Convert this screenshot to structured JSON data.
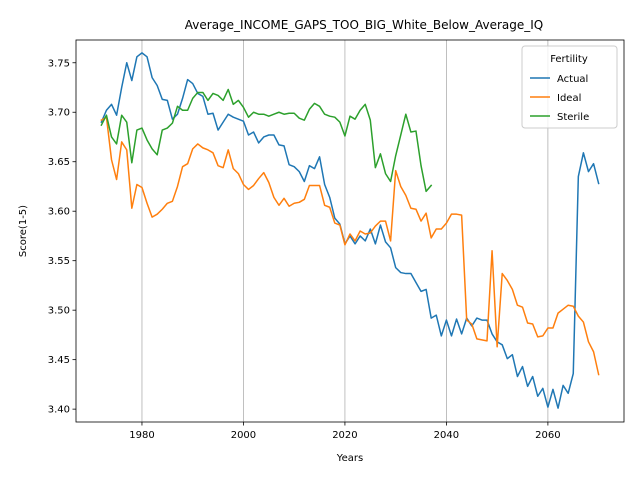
{
  "chart_data": {
    "type": "line",
    "title": "Average_INCOME_GAPS_TOO_BIG_White_Below_Average_IQ",
    "xlabel": "Years",
    "ylabel": "Score(1-5)",
    "xlim": [
      1967,
      2075
    ],
    "ylim": [
      3.387,
      3.773
    ],
    "xticks": [
      1980,
      2000,
      2020,
      2040,
      2060
    ],
    "yticks": [
      3.4,
      3.45,
      3.5,
      3.55,
      3.6,
      3.65,
      3.7,
      3.75
    ],
    "ytick_labels": [
      "3.40",
      "3.45",
      "3.50",
      "3.55",
      "3.60",
      "3.65",
      "3.70",
      "3.75"
    ],
    "grid": "x-only",
    "legend": {
      "title": "Fertility",
      "placement": "top-right"
    },
    "series": [
      {
        "name": "Actual",
        "color": "#1f77b4",
        "x": [
          1972,
          1973,
          1974,
          1975,
          1976,
          1977,
          1978,
          1979,
          1980,
          1981,
          1982,
          1983,
          1984,
          1985,
          1986,
          1987,
          1988,
          1989,
          1990,
          1991,
          1992,
          1993,
          1994,
          1995,
          1996,
          1997,
          1998,
          1999,
          2000,
          2001,
          2002,
          2003,
          2004,
          2005,
          2006,
          2007,
          2008,
          2009,
          2010,
          2011,
          2012,
          2013,
          2014,
          2015,
          2016,
          2017,
          2018,
          2019,
          2020,
          2021,
          2022,
          2023,
          2024,
          2025,
          2026,
          2027,
          2028,
          2029,
          2030,
          2031,
          2032,
          2033,
          2034,
          2035,
          2036,
          2037,
          2038,
          2039,
          2040,
          2041,
          2042,
          2043,
          2044,
          2045,
          2046,
          2047,
          2048,
          2049,
          2050,
          2051,
          2052,
          2053,
          2054,
          2055,
          2056,
          2057,
          2058,
          2059,
          2060,
          2061,
          2062,
          2063,
          2064,
          2065,
          2066,
          2067,
          2068,
          2069,
          2070
        ],
        "values": [
          3.69,
          3.702,
          3.708,
          3.697,
          3.725,
          3.75,
          3.732,
          3.756,
          3.76,
          3.756,
          3.735,
          3.727,
          3.713,
          3.712,
          3.693,
          3.698,
          3.714,
          3.733,
          3.729,
          3.719,
          3.716,
          3.698,
          3.699,
          3.682,
          3.69,
          3.698,
          3.695,
          3.693,
          3.691,
          3.677,
          3.68,
          3.669,
          3.675,
          3.677,
          3.677,
          3.667,
          3.666,
          3.647,
          3.645,
          3.64,
          3.63,
          3.646,
          3.643,
          3.655,
          3.627,
          3.614,
          3.593,
          3.587,
          3.567,
          3.575,
          3.567,
          3.575,
          3.57,
          3.582,
          3.567,
          3.586,
          3.569,
          3.563,
          3.543,
          3.538,
          3.537,
          3.537,
          3.528,
          3.519,
          3.521,
          3.492,
          3.495,
          3.474,
          3.49,
          3.474,
          3.491,
          3.476,
          3.492,
          3.484,
          3.492,
          3.49,
          3.49,
          3.476,
          3.468,
          3.465,
          3.451,
          3.455,
          3.433,
          3.443,
          3.423,
          3.433,
          3.413,
          3.421,
          3.402,
          3.42,
          3.401,
          3.424,
          3.416,
          3.436,
          3.635,
          3.659,
          3.64,
          3.648,
          3.628
        ]
      },
      {
        "name": "Ideal",
        "color": "#ff7f0e",
        "x": [
          1972,
          1973,
          1974,
          1975,
          1976,
          1977,
          1978,
          1979,
          1980,
          1981,
          1982,
          1983,
          1984,
          1985,
          1986,
          1987,
          1988,
          1989,
          1990,
          1991,
          1992,
          1993,
          1994,
          1995,
          1996,
          1997,
          1998,
          1999,
          2000,
          2001,
          2002,
          2003,
          2004,
          2005,
          2006,
          2007,
          2008,
          2009,
          2010,
          2011,
          2012,
          2013,
          2014,
          2015,
          2016,
          2017,
          2018,
          2019,
          2020,
          2021,
          2022,
          2023,
          2024,
          2025,
          2026,
          2027,
          2028,
          2029,
          2030,
          2031,
          2032,
          2033,
          2034,
          2035,
          2036,
          2037,
          2038,
          2039,
          2040,
          2041,
          2042,
          2043,
          2044,
          2045,
          2046,
          2047,
          2048,
          2049,
          2050,
          2051,
          2052,
          2053,
          2054,
          2055,
          2056,
          2057,
          2058,
          2059,
          2060,
          2061,
          2062,
          2063,
          2064,
          2065,
          2066,
          2067,
          2068,
          2069,
          2070
        ],
        "values": [
          3.692,
          3.695,
          3.652,
          3.632,
          3.67,
          3.662,
          3.603,
          3.627,
          3.624,
          3.608,
          3.594,
          3.597,
          3.602,
          3.608,
          3.61,
          3.625,
          3.645,
          3.648,
          3.663,
          3.668,
          3.664,
          3.662,
          3.659,
          3.646,
          3.644,
          3.662,
          3.643,
          3.638,
          3.627,
          3.622,
          3.626,
          3.633,
          3.639,
          3.629,
          3.614,
          3.606,
          3.613,
          3.605,
          3.608,
          3.609,
          3.612,
          3.626,
          3.626,
          3.626,
          3.606,
          3.604,
          3.588,
          3.586,
          3.566,
          3.577,
          3.57,
          3.58,
          3.577,
          3.578,
          3.585,
          3.59,
          3.59,
          3.57,
          3.641,
          3.625,
          3.616,
          3.603,
          3.602,
          3.59,
          3.598,
          3.573,
          3.582,
          3.582,
          3.588,
          3.597,
          3.597,
          3.596,
          3.49,
          3.486,
          3.471,
          3.47,
          3.469,
          3.56,
          3.463,
          3.537,
          3.53,
          3.521,
          3.505,
          3.503,
          3.487,
          3.486,
          3.473,
          3.474,
          3.482,
          3.482,
          3.497,
          3.501,
          3.505,
          3.504,
          3.494,
          3.488,
          3.468,
          3.458,
          3.435
        ]
      },
      {
        "name": "Sterile",
        "color": "#2ca02c",
        "x": [
          1972,
          1973,
          1974,
          1975,
          1976,
          1977,
          1978,
          1979,
          1980,
          1981,
          1982,
          1983,
          1984,
          1985,
          1986,
          1987,
          1988,
          1989,
          1990,
          1991,
          1992,
          1993,
          1994,
          1995,
          1996,
          1997,
          1998,
          1999,
          2000,
          2001,
          2002,
          2003,
          2004,
          2005,
          2006,
          2007,
          2008,
          2009,
          2010,
          2011,
          2012,
          2013,
          2014,
          2015,
          2016,
          2017,
          2018,
          2019,
          2020,
          2021,
          2022,
          2023,
          2024,
          2025,
          2026,
          2027,
          2028,
          2029,
          2030,
          2031,
          2032,
          2033,
          2034,
          2035,
          2036,
          2037
        ],
        "values": [
          3.687,
          3.697,
          3.675,
          3.668,
          3.697,
          3.69,
          3.649,
          3.682,
          3.684,
          3.672,
          3.663,
          3.657,
          3.682,
          3.684,
          3.689,
          3.706,
          3.702,
          3.702,
          3.714,
          3.72,
          3.72,
          3.712,
          3.719,
          3.717,
          3.712,
          3.723,
          3.708,
          3.712,
          3.705,
          3.695,
          3.7,
          3.698,
          3.698,
          3.696,
          3.698,
          3.7,
          3.698,
          3.699,
          3.699,
          3.694,
          3.692,
          3.703,
          3.709,
          3.706,
          3.698,
          3.696,
          3.695,
          3.69,
          3.676,
          3.696,
          3.693,
          3.702,
          3.708,
          3.692,
          3.644,
          3.658,
          3.638,
          3.63,
          3.656,
          3.677,
          3.698,
          3.68,
          3.681,
          3.646,
          3.62,
          3.626
        ]
      }
    ]
  }
}
